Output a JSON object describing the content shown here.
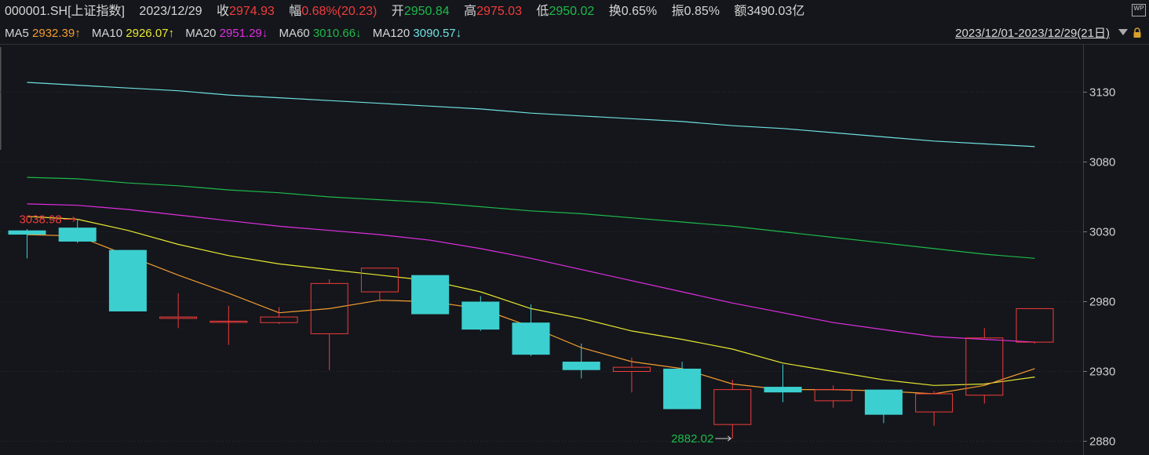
{
  "header": {
    "code": "000001.SH[上证指数]",
    "date": "2023/12/29",
    "close_label": "收",
    "close": "2974.93",
    "change_label": "幅",
    "change": "0.68%(20.23)",
    "open_label": "开",
    "open": "2950.84",
    "high_label": "高",
    "high": "2975.03",
    "low_label": "低",
    "low": "2950.02",
    "turnover_label": "换",
    "turnover": "0.65%",
    "amplitude_label": "振",
    "amplitude": "0.85%",
    "amount_label": "额",
    "amount": "3490.03亿",
    "wp_icon": "WP"
  },
  "ma_bar": {
    "ma5_label": "MA5",
    "ma5": "2932.39↑",
    "ma10_label": "MA10",
    "ma10": "2926.07↑",
    "ma20_label": "MA20",
    "ma20": "2951.29↓",
    "ma60_label": "MA60",
    "ma60": "3010.66↓",
    "ma120_label": "MA120",
    "ma120": "3090.57↓",
    "range": "2023/12/01-2023/12/29(21日)",
    "dropdown_icon": "triangle-down-icon",
    "lock_icon": "lock-icon"
  },
  "colors": {
    "up": "#f23c3c",
    "down": "#3ccfcf",
    "ma5": "#f39c30",
    "ma10": "#e8e830",
    "ma20": "#e02ee0",
    "ma60": "#1fb94a",
    "ma120": "#6fe0e0",
    "grid": "#2a2d33"
  },
  "chart_data": {
    "type": "candlestick",
    "ylim": [
      2870,
      3150
    ],
    "yticks": [
      "3130",
      "3080",
      "3030",
      "2980",
      "2930",
      "2880"
    ],
    "candles": [
      {
        "open": 3031,
        "close": 3028,
        "high": 3032,
        "low": 3011
      },
      {
        "open": 3033,
        "close": 3023,
        "high": 3039,
        "low": 3022
      },
      {
        "open": 3017,
        "close": 2973,
        "high": 3017,
        "low": 2973
      },
      {
        "open": 2968,
        "close": 2969,
        "high": 2986,
        "low": 2961
      },
      {
        "open": 2966,
        "close": 2966,
        "high": 2977,
        "low": 2949
      },
      {
        "open": 2965,
        "close": 2969,
        "high": 2976,
        "low": 2964
      },
      {
        "open": 2957,
        "close": 2993,
        "high": 2996,
        "low": 2931
      },
      {
        "open": 2987,
        "close": 3004,
        "high": 3004,
        "low": 2980
      },
      {
        "open": 2999,
        "close": 2971,
        "high": 2999,
        "low": 2971
      },
      {
        "open": 2980,
        "close": 2960,
        "high": 2984,
        "low": 2959
      },
      {
        "open": 2965,
        "close": 2942,
        "high": 2978,
        "low": 2941
      },
      {
        "open": 2937,
        "close": 2931,
        "high": 2950,
        "low": 2925
      },
      {
        "open": 2930,
        "close": 2933,
        "high": 2940,
        "low": 2915
      },
      {
        "open": 2932,
        "close": 2903,
        "high": 2937,
        "low": 2903
      },
      {
        "open": 2892,
        "close": 2917,
        "high": 2924,
        "low": 2882
      },
      {
        "open": 2919,
        "close": 2915,
        "high": 2935,
        "low": 2908
      },
      {
        "open": 2909,
        "close": 2917,
        "high": 2920,
        "low": 2904
      },
      {
        "open": 2917,
        "close": 2899,
        "high": 2917,
        "low": 2893
      },
      {
        "open": 2901,
        "close": 2914,
        "high": 2916,
        "low": 2891
      },
      {
        "open": 2913,
        "close": 2954,
        "high": 2961,
        "low": 2907
      },
      {
        "open": 2951,
        "close": 2975,
        "high": 2975,
        "low": 2950
      }
    ],
    "ma5": [
      3028,
      3027,
      3013,
      2999,
      2986,
      2972,
      2975,
      2981,
      2980,
      2975,
      2962,
      2947,
      2937,
      2932,
      2921,
      2917,
      2917,
      2916,
      2914,
      2920,
      2932
    ],
    "ma10": [
      3041,
      3039,
      3031,
      3021,
      3013,
      3007,
      3003,
      2999,
      2995,
      2987,
      2975,
      2968,
      2959,
      2953,
      2946,
      2936,
      2930,
      2924,
      2920,
      2921,
      2926
    ],
    "ma20": [
      3050,
      3049,
      3046,
      3042,
      3038,
      3034,
      3031,
      3028,
      3024,
      3018,
      3011,
      3003,
      2995,
      2987,
      2979,
      2972,
      2965,
      2960,
      2955,
      2953,
      2951
    ],
    "ma60": [
      3069,
      3068,
      3065,
      3063,
      3060,
      3058,
      3055,
      3053,
      3051,
      3048,
      3045,
      3043,
      3040,
      3037,
      3034,
      3030,
      3026,
      3022,
      3018,
      3014,
      3011
    ],
    "ma120": [
      3137,
      3135,
      3133,
      3131,
      3128,
      3126,
      3124,
      3122,
      3120,
      3118,
      3115,
      3113,
      3111,
      3109,
      3106,
      3104,
      3101,
      3098,
      3095,
      3093,
      3091
    ],
    "max_label": "3038.98",
    "min_label": "2882.02",
    "max_value": 3039,
    "min_value": 2882
  }
}
